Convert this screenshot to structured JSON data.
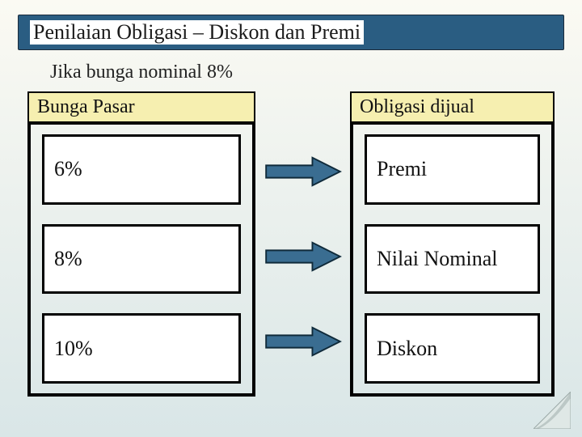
{
  "slide": {
    "background_gradient": {
      "from": "#fbfaf3",
      "to": "#d9e6e7"
    },
    "title": {
      "text": "Penilaian Obligasi – Diskon dan Premi",
      "bg": "#2a5d82",
      "text_bg_overlay": "#ffffff",
      "color": "#1a1a1a",
      "fontsize": 26,
      "weight": "normal"
    },
    "subtitle": {
      "text": "Jika bunga nominal 8%",
      "color": "#222222",
      "fontsize": 24
    },
    "headers": {
      "left": "Bunga Pasar",
      "right": "Obligasi dijual",
      "bg": "#f6efb0",
      "color": "#111111",
      "fontsize": 24
    },
    "rows": [
      {
        "rate": "6%",
        "result": "Premi"
      },
      {
        "rate": "8%",
        "result": "Nilai Nominal"
      },
      {
        "rate": "10%",
        "result": "Diskon"
      }
    ],
    "cell": {
      "bg": "#ffffff",
      "fontsize": 26,
      "color": "#111111"
    },
    "arrow": {
      "fill": "#3a6d91",
      "stroke": "#0f2a3a",
      "width": 96,
      "height": 42
    },
    "corner_curl": {
      "fill": "#dfe8e6",
      "stroke": "#9aa8a6"
    }
  }
}
